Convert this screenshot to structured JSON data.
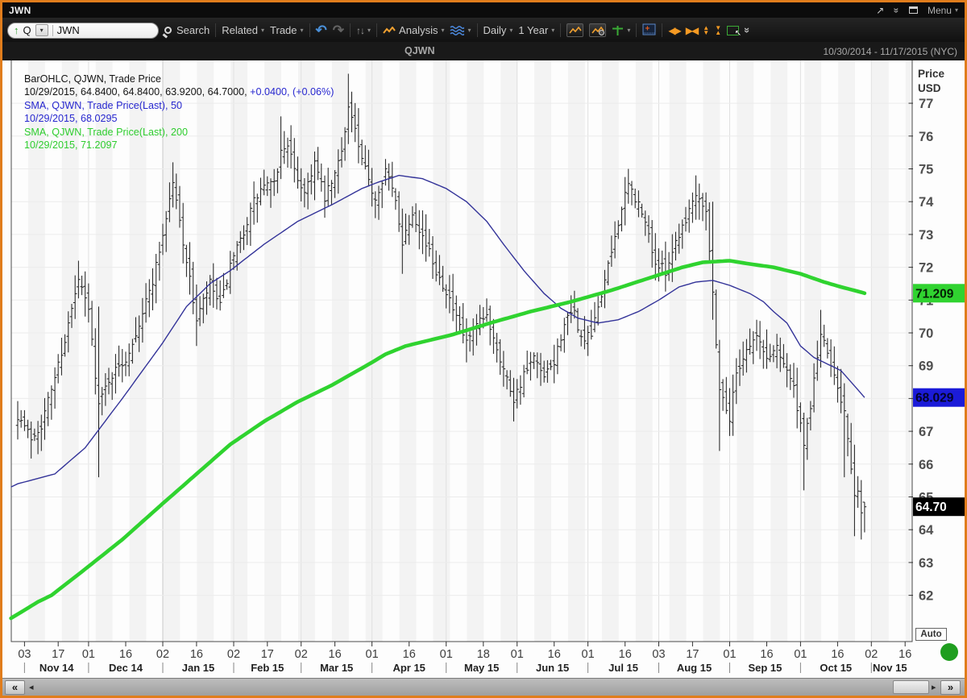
{
  "window": {
    "title": "JWN",
    "menu_label": "Menu",
    "glyphs": {
      "popout": "↗",
      "collapse": "»",
      "dropdown": "▾"
    },
    "border_color": "#e07d1c"
  },
  "toolbar": {
    "up_arrow": "↑",
    "quote_type": "Q",
    "symbol_input": "JWN",
    "search_label": "Search",
    "related_label": "Related",
    "trade_label": "Trade",
    "analysis_label": "Analysis",
    "period_label": "Daily",
    "range_label": "1 Year",
    "glyphs": {
      "dropdown": "▾",
      "undo": "↶",
      "redo": "↷",
      "tick_tool": "↑↓",
      "expand_h": "◀▶",
      "collapse_h": "▶◀",
      "tri_up": "▲",
      "tri_down": "▼",
      "more": "»"
    }
  },
  "chart_header": {
    "symbol": "QJWN",
    "date_range": "10/30/2014 - 11/17/2015 (NYC)"
  },
  "legend": {
    "line1": "BarOHLC, QJWN, Trade Price",
    "line2_black": "10/29/2015, 64.8400, 64.8400, 63.9200, 64.7000,",
    "line2_blue": "+0.0400, (+0.06%)",
    "line3": "SMA, QJWN, Trade Price(Last),  50",
    "line4": "10/29/2015, 68.0295",
    "line5": "SMA, QJWN, Trade Price(Last),  200",
    "line6": "10/29/2015, 71.2097"
  },
  "y_axis": {
    "header_line1": "Price",
    "header_line2": "USD",
    "ticks": [
      77,
      76,
      75,
      74,
      73,
      72,
      71,
      70,
      69,
      68,
      67,
      66,
      65,
      64,
      63,
      62
    ]
  },
  "price_labels": {
    "sma200": {
      "text": "71.209",
      "value": 71.2097,
      "bg": "#30d330",
      "fg": "#062006"
    },
    "sma50": {
      "text": "68.029",
      "value": 68.0295,
      "bg": "#1b1bd8",
      "fg": "#04042a"
    },
    "last": {
      "text": "64.70",
      "value": 64.7,
      "bg": "#000000",
      "fg": "#ffffff"
    }
  },
  "auto_button_label": "Auto",
  "scrollbar": {
    "far_left": "«",
    "step_left": "◂",
    "step_right": "▸",
    "far_right": "»"
  },
  "chart_data": {
    "type": "ohlc",
    "symbol": "QJWN",
    "title": "QJWN Trade Price with 50-day and 200-day SMA",
    "date_range": "10/30/2014 - 11/17/2015",
    "ylabel": "Price USD",
    "ylim": [
      61.0,
      78.2
    ],
    "price_ticks": [
      62,
      63,
      64,
      65,
      66,
      67,
      68,
      69,
      70,
      71,
      72,
      73,
      74,
      75,
      76,
      77
    ],
    "bar_color": "#1c1c1c",
    "last_bar": {
      "date": "10/29/2015",
      "open": 64.84,
      "high": 64.84,
      "low": 63.92,
      "close": 64.7,
      "change": "+0.0400",
      "change_pct": "+0.06%"
    },
    "sma50": {
      "period": 50,
      "last": 68.0295,
      "color": "#333399",
      "anchors": [
        [
          -2,
          65.3
        ],
        [
          0,
          65.4
        ],
        [
          11,
          65.7
        ],
        [
          20,
          66.5
        ],
        [
          31,
          68.0
        ],
        [
          43,
          69.7
        ],
        [
          50,
          70.8
        ],
        [
          57,
          71.5
        ],
        [
          63,
          71.9
        ],
        [
          73,
          72.7
        ],
        [
          83,
          73.4
        ],
        [
          93,
          73.9
        ],
        [
          102,
          74.4
        ],
        [
          107,
          74.6
        ],
        [
          113,
          74.8
        ],
        [
          120,
          74.7
        ],
        [
          127,
          74.4
        ],
        [
          133,
          74.0
        ],
        [
          139,
          73.4
        ],
        [
          144,
          72.7
        ],
        [
          150,
          71.9
        ],
        [
          156,
          71.2
        ],
        [
          161,
          70.75
        ],
        [
          166,
          70.45
        ],
        [
          172,
          70.3
        ],
        [
          178,
          70.4
        ],
        [
          184,
          70.65
        ],
        [
          190,
          71.0
        ],
        [
          196,
          71.4
        ],
        [
          201,
          71.55
        ],
        [
          206,
          71.6
        ],
        [
          211,
          71.45
        ],
        [
          217,
          71.2
        ],
        [
          221,
          70.95
        ],
        [
          224,
          70.65
        ],
        [
          228,
          70.3
        ],
        [
          232,
          69.6
        ],
        [
          236,
          69.25
        ],
        [
          240,
          69.05
        ],
        [
          244,
          68.85
        ],
        [
          247,
          68.5
        ],
        [
          251,
          68.03
        ]
      ]
    },
    "sma200": {
      "period": 200,
      "last": 71.2097,
      "color": "#2fd32f",
      "anchors": [
        [
          -2,
          61.3
        ],
        [
          6,
          61.8
        ],
        [
          10,
          62.0
        ],
        [
          20,
          62.8
        ],
        [
          31,
          63.7
        ],
        [
          43,
          64.8
        ],
        [
          53,
          65.7
        ],
        [
          63,
          66.6
        ],
        [
          73,
          67.3
        ],
        [
          83,
          67.9
        ],
        [
          93,
          68.4
        ],
        [
          105,
          69.1
        ],
        [
          109,
          69.35
        ],
        [
          115,
          69.6
        ],
        [
          121,
          69.75
        ],
        [
          129,
          69.95
        ],
        [
          140,
          70.3
        ],
        [
          152,
          70.65
        ],
        [
          164,
          70.95
        ],
        [
          176,
          71.3
        ],
        [
          188,
          71.7
        ],
        [
          197,
          72.0
        ],
        [
          203,
          72.15
        ],
        [
          211,
          72.2
        ],
        [
          217,
          72.1
        ],
        [
          224,
          72.0
        ],
        [
          232,
          71.8
        ],
        [
          239,
          71.55
        ],
        [
          244,
          71.4
        ],
        [
          251,
          71.21
        ]
      ]
    },
    "close_anchors": [
      [
        0,
        67.5
      ],
      [
        4,
        66.8
      ],
      [
        7,
        67.2,
        null,
        66.4
      ],
      [
        10,
        68.3
      ],
      [
        14,
        69.8
      ],
      [
        18,
        71.6,
        72.2,
        null
      ],
      [
        21,
        70.7
      ],
      [
        24,
        67.8,
        70.8,
        65.6
      ],
      [
        27,
        68.6
      ],
      [
        32,
        69.2
      ],
      [
        36,
        70.3
      ],
      [
        40,
        71.6
      ],
      [
        43,
        73.0
      ],
      [
        46,
        74.6,
        75.2,
        null
      ],
      [
        49,
        72.8
      ],
      [
        53,
        70.4,
        null,
        69.6
      ],
      [
        57,
        71.5
      ],
      [
        60,
        70.8
      ],
      [
        63,
        72.0
      ],
      [
        66,
        72.8
      ],
      [
        70,
        74.0
      ],
      [
        73,
        74.5
      ],
      [
        76,
        74.5
      ],
      [
        78,
        75.5,
        76.6,
        null
      ],
      [
        80,
        75.8
      ],
      [
        82,
        74.9
      ],
      [
        85,
        74.3
      ],
      [
        88,
        75.2
      ],
      [
        91,
        74.1
      ],
      [
        94,
        74.8
      ],
      [
        96,
        75.6
      ],
      [
        98,
        76.9,
        77.9,
        null
      ],
      [
        100,
        76.2
      ],
      [
        101,
        75.6
      ],
      [
        104,
        74.6
      ],
      [
        106,
        74.1
      ],
      [
        109,
        75.0,
        75.3,
        null
      ],
      [
        112,
        74.0
      ],
      [
        114,
        72.8,
        null,
        71.8
      ],
      [
        117,
        73.7
      ],
      [
        121,
        72.7
      ],
      [
        124,
        71.9
      ],
      [
        127,
        71.3
      ],
      [
        130,
        70.4
      ],
      [
        133,
        69.7,
        null,
        69.1
      ],
      [
        136,
        70.2
      ],
      [
        139,
        70.5
      ],
      [
        141,
        69.9
      ],
      [
        144,
        68.9
      ],
      [
        147,
        68.0,
        null,
        67.3
      ],
      [
        150,
        68.7
      ],
      [
        153,
        69.2
      ],
      [
        156,
        68.6
      ],
      [
        159,
        69.1
      ],
      [
        162,
        70.3
      ],
      [
        165,
        70.6
      ],
      [
        167,
        69.8
      ],
      [
        170,
        69.9
      ],
      [
        172,
        70.8
      ],
      [
        175,
        72.0
      ],
      [
        178,
        73.4
      ],
      [
        181,
        74.5,
        75.0,
        null
      ],
      [
        184,
        73.9
      ],
      [
        187,
        73.0
      ],
      [
        189,
        72.1,
        null,
        71.6
      ],
      [
        192,
        71.9
      ],
      [
        195,
        72.8
      ],
      [
        198,
        73.5
      ],
      [
        201,
        74.3,
        74.8,
        null
      ],
      [
        204,
        73.8
      ],
      [
        206,
        71.2,
        74.0,
        70.4
      ],
      [
        208,
        68.3,
        null,
        66.4
      ],
      [
        211,
        67.4
      ],
      [
        213,
        68.8
      ],
      [
        216,
        69.5
      ],
      [
        219,
        69.9,
        70.4,
        null
      ],
      [
        222,
        69.2
      ],
      [
        225,
        69.6
      ],
      [
        228,
        68.9
      ],
      [
        230,
        68.3
      ],
      [
        233,
        66.5,
        null,
        65.2
      ],
      [
        235,
        67.8
      ],
      [
        238,
        70.0,
        70.7,
        null
      ],
      [
        240,
        69.3
      ],
      [
        242,
        68.8
      ],
      [
        245,
        67.6,
        null,
        65.6
      ],
      [
        247,
        65.8
      ],
      [
        248,
        64.9,
        null,
        63.8
      ],
      [
        249,
        65.3
      ],
      [
        250,
        64.5,
        null,
        63.7
      ],
      [
        251,
        64.7,
        64.84,
        63.92
      ]
    ],
    "bars_total": 252,
    "axis_days_total": 264,
    "day_ticks": [
      [
        2,
        "03"
      ],
      [
        12,
        "17"
      ],
      [
        21,
        "01"
      ],
      [
        32,
        "16"
      ],
      [
        43,
        "02"
      ],
      [
        53,
        "16"
      ],
      [
        64,
        "02"
      ],
      [
        74,
        "17"
      ],
      [
        84,
        "02"
      ],
      [
        94,
        "16"
      ],
      [
        105,
        "01"
      ],
      [
        116,
        "16"
      ],
      [
        127,
        "01"
      ],
      [
        138,
        "18"
      ],
      [
        148,
        "01"
      ],
      [
        159,
        "16"
      ],
      [
        169,
        "01"
      ],
      [
        180,
        "16"
      ],
      [
        190,
        "03"
      ],
      [
        200,
        "17"
      ],
      [
        211,
        "01"
      ],
      [
        222,
        "16"
      ],
      [
        232,
        "01"
      ],
      [
        243,
        "16"
      ],
      [
        253,
        "02"
      ],
      [
        263,
        "16"
      ]
    ],
    "months": [
      {
        "label": "Nov 14",
        "from": 2,
        "to": 21
      },
      {
        "label": "Dec 14",
        "from": 21,
        "to": 43
      },
      {
        "label": "Jan 15",
        "from": 43,
        "to": 64
      },
      {
        "label": "Feb 15",
        "from": 64,
        "to": 84
      },
      {
        "label": "Mar 15",
        "from": 84,
        "to": 105
      },
      {
        "label": "Apr 15",
        "from": 105,
        "to": 127
      },
      {
        "label": "May 15",
        "from": 127,
        "to": 148
      },
      {
        "label": "Jun 15",
        "from": 148,
        "to": 169
      },
      {
        "label": "Jul 15",
        "from": 169,
        "to": 190
      },
      {
        "label": "Aug 15",
        "from": 190,
        "to": 211
      },
      {
        "label": "Sep 15",
        "from": 211,
        "to": 232
      },
      {
        "label": "Oct 15",
        "from": 232,
        "to": 253
      },
      {
        "label": "Nov 15",
        "from": 253,
        "to": 264
      }
    ]
  }
}
